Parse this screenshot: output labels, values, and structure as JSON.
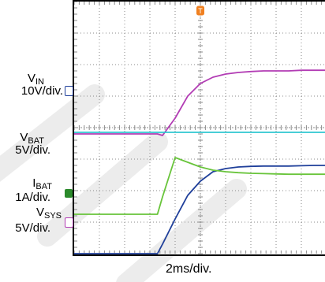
{
  "chart_data": {
    "type": "line",
    "title": "",
    "xlabel": "2ms/div.",
    "ylabel": "",
    "grid": true,
    "x_divisions": 10,
    "y_divisions": 8,
    "x": [
      0.0,
      0.5,
      1.0,
      1.5,
      2.0,
      2.5,
      3.0,
      3.3,
      3.5,
      4.0,
      4.5,
      5.0,
      5.5,
      6.0,
      6.5,
      7.0,
      7.5,
      8.0,
      8.5,
      9.0,
      9.5,
      10.0
    ],
    "series": [
      {
        "name": "VIN",
        "scale": "10V/div.",
        "marker": "1",
        "color": "#1f3f9a",
        "ground_div": 4.4,
        "values": [
          0,
          0,
          0,
          0,
          0,
          0,
          0,
          0,
          0.3,
          1.1,
          1.85,
          2.3,
          2.6,
          2.7,
          2.75,
          2.77,
          2.78,
          2.78,
          2.78,
          2.79,
          2.8,
          2.8
        ]
      },
      {
        "name": "VBAT",
        "scale": "5V/div.",
        "marker": "",
        "color": "#b23cb4",
        "ground_div": 3.05,
        "values": [
          3.8,
          3.8,
          3.8,
          3.8,
          3.8,
          3.8,
          3.8,
          3.8,
          3.75,
          4.3,
          5.0,
          5.4,
          5.6,
          5.7,
          5.75,
          5.78,
          5.8,
          5.8,
          5.8,
          5.82,
          5.82,
          5.82
        ]
      },
      {
        "name": "VSYS (cyan trace)",
        "scale": "",
        "marker": "",
        "color": "#2fc7d0",
        "ground_div": 3.05,
        "values": [
          3.85,
          3.85,
          3.85,
          3.85,
          3.85,
          3.85,
          3.85,
          3.85,
          3.85,
          3.85,
          3.85,
          3.85,
          3.85,
          3.85,
          3.85,
          3.85,
          3.85,
          3.85,
          3.85,
          3.85,
          3.85,
          3.85
        ]
      },
      {
        "name": "IBAT",
        "scale": "1A/div.",
        "marker": "4",
        "color": "#68c43a",
        "ground_div": 1.15,
        "values": [
          1.25,
          1.25,
          1.25,
          1.25,
          1.25,
          1.25,
          1.25,
          1.25,
          1.8,
          3.05,
          2.9,
          2.75,
          2.65,
          2.6,
          2.57,
          2.55,
          2.54,
          2.53,
          2.52,
          2.52,
          2.52,
          2.52
        ]
      }
    ]
  },
  "labels": [
    {
      "main": "V",
      "sub": "IN",
      "scale": "10V/div.",
      "channel": "1"
    },
    {
      "main": "V",
      "sub": "BAT",
      "scale": "5V/div.",
      "channel": ""
    },
    {
      "main": "I",
      "sub": "BAT",
      "scale": "1A/div.",
      "channel": "4"
    },
    {
      "main": "V",
      "sub": "SYS",
      "scale": "5V/div.",
      "channel": "3"
    }
  ],
  "trigger_marker": "T",
  "x_division_label": "2ms/div.",
  "colors": {
    "background": "#ffffff",
    "grid": "#8a8a8a",
    "frame": "#000000",
    "trigger": "#f08020",
    "ch1_marker": "#1f3f9a",
    "ch3_marker": "#b23cb4",
    "ch4_marker": "#2b8a2b",
    "watermark": "#e8e8e8"
  }
}
